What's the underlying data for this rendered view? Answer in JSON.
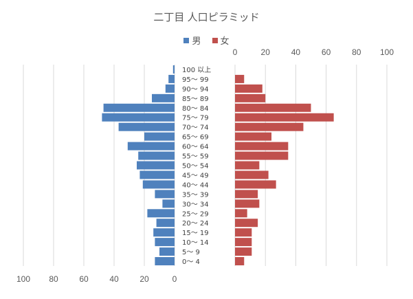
{
  "chart_data": {
    "type": "bar",
    "orientation": "horizontal",
    "layout": "population-pyramid",
    "title": "二丁目 人口ピラミッド",
    "categories": [
      "0～ 4",
      "5～ 9",
      "10～ 14",
      "15～ 19",
      "20～ 24",
      "25～ 29",
      "30～ 34",
      "35～ 39",
      "40～ 44",
      "45～ 49",
      "50～ 54",
      "55～ 59",
      "60～ 64",
      "65～ 69",
      "70～ 74",
      "75～ 79",
      "80～ 84",
      "85～ 89",
      "90～ 94",
      "95～ 99",
      "100 以上"
    ],
    "series": [
      {
        "name": "男",
        "color": "#4f81bd",
        "values": [
          13,
          10,
          13,
          14,
          12,
          18,
          8,
          13,
          21,
          23,
          25,
          24,
          31,
          20,
          37,
          48,
          47,
          15,
          6,
          4,
          1
        ]
      },
      {
        "name": "女",
        "color": "#c0504d",
        "values": [
          6,
          11,
          11,
          11,
          15,
          8,
          16,
          15,
          27,
          22,
          16,
          35,
          35,
          24,
          45,
          65,
          50,
          20,
          18,
          6,
          0
        ]
      }
    ],
    "xlim_left": [
      100,
      0
    ],
    "xlim_right": [
      0,
      100
    ],
    "xticks": [
      100,
      80,
      60,
      40,
      20,
      0
    ],
    "xticks_right": [
      0,
      20,
      40,
      60,
      80,
      100
    ],
    "grid": true,
    "legend_position": "top"
  }
}
